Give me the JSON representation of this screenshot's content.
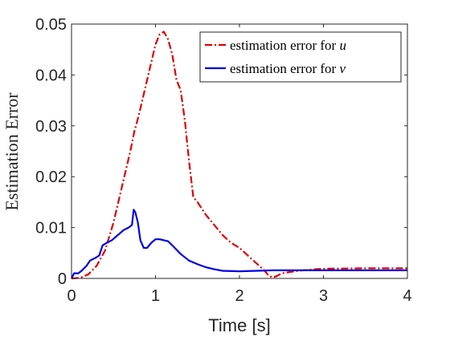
{
  "chart_data": {
    "type": "line",
    "xlabel": "Time [s]",
    "ylabel": "Estimation Error",
    "xlim": [
      0,
      4
    ],
    "ylim": [
      0,
      0.05
    ],
    "xticks": [
      "0",
      "1",
      "2",
      "3",
      "4"
    ],
    "yticks": [
      "0",
      "0.01",
      "0.02",
      "0.03",
      "0.04",
      "0.05"
    ],
    "grid": false,
    "legend_position": "top-right",
    "series": [
      {
        "name": "estimation error for u",
        "name_prefix": "estimation error for ",
        "name_var": "u",
        "color": "#e00000",
        "dash": "dash-dot",
        "x": [
          0,
          0.1,
          0.2,
          0.3,
          0.4,
          0.5,
          0.6,
          0.7,
          0.75,
          0.8,
          0.9,
          1.0,
          1.05,
          1.1,
          1.15,
          1.2,
          1.25,
          1.3,
          1.35,
          1.4,
          1.45,
          1.5,
          1.6,
          1.7,
          1.8,
          1.9,
          2.0,
          2.1,
          2.2,
          2.3,
          2.35,
          2.4,
          2.45,
          2.5,
          2.7,
          2.9,
          3.0,
          3.5,
          4.0
        ],
        "y": [
          0,
          0.0001,
          0.0008,
          0.0025,
          0.0055,
          0.011,
          0.018,
          0.025,
          0.029,
          0.032,
          0.039,
          0.046,
          0.048,
          0.0485,
          0.047,
          0.044,
          0.039,
          0.037,
          0.031,
          0.023,
          0.016,
          0.015,
          0.0125,
          0.0105,
          0.0085,
          0.007,
          0.006,
          0.0045,
          0.003,
          0.0015,
          0.0005,
          0.0002,
          0.0005,
          0.001,
          0.0015,
          0.0018,
          0.0019,
          0.002,
          0.002
        ]
      },
      {
        "name": "estimation error for v",
        "name_prefix": "estimation error for ",
        "name_var": "v",
        "color": "#0000e0",
        "dash": "solid",
        "x": [
          0,
          0.03,
          0.08,
          0.12,
          0.18,
          0.22,
          0.28,
          0.33,
          0.37,
          0.42,
          0.48,
          0.55,
          0.62,
          0.68,
          0.72,
          0.74,
          0.76,
          0.79,
          0.82,
          0.86,
          0.9,
          0.95,
          1.0,
          1.05,
          1.1,
          1.15,
          1.2,
          1.3,
          1.4,
          1.5,
          1.6,
          1.7,
          1.8,
          2.0,
          2.2,
          2.4,
          2.5,
          2.8,
          3.0,
          3.5,
          4.0
        ],
        "y": [
          0,
          0.001,
          0.001,
          0.0015,
          0.0025,
          0.0035,
          0.004,
          0.0045,
          0.0065,
          0.007,
          0.0075,
          0.0085,
          0.0095,
          0.01,
          0.0105,
          0.0135,
          0.013,
          0.011,
          0.0075,
          0.006,
          0.006,
          0.007,
          0.0077,
          0.0077,
          0.0075,
          0.0073,
          0.0065,
          0.0048,
          0.0035,
          0.0028,
          0.0022,
          0.0018,
          0.0015,
          0.0014,
          0.0015,
          0.0016,
          0.0016,
          0.0016,
          0.0016,
          0.0016,
          0.0016
        ]
      }
    ]
  }
}
